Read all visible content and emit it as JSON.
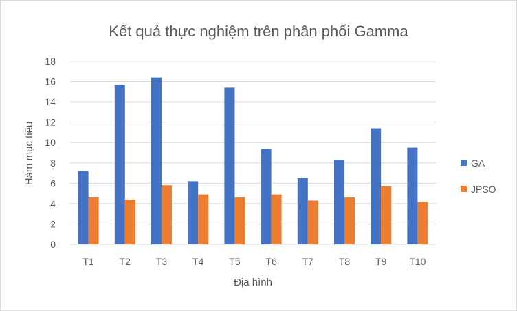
{
  "chart_data": {
    "type": "bar",
    "title": "Kết quả thực nghiệm trên phân phối Gamma",
    "xlabel": "Địa hình",
    "ylabel": "Hàm mục tiêu",
    "categories": [
      "T1",
      "T2",
      "T3",
      "T4",
      "T5",
      "T6",
      "T7",
      "T8",
      "T9",
      "T10"
    ],
    "series": [
      {
        "name": "GA",
        "color": "#4472C4",
        "values": [
          7.2,
          15.7,
          16.4,
          6.2,
          15.4,
          9.4,
          6.5,
          8.3,
          11.4,
          9.5
        ]
      },
      {
        "name": "JPSO",
        "color": "#ED7D31",
        "values": [
          4.6,
          4.4,
          5.8,
          4.9,
          4.6,
          4.9,
          4.3,
          4.6,
          5.7,
          4.2
        ]
      }
    ],
    "ylim": [
      0,
      18
    ],
    "yticks": [
      0,
      2,
      4,
      6,
      8,
      10,
      12,
      14,
      16,
      18
    ],
    "grid": true,
    "legend_position": "right"
  }
}
